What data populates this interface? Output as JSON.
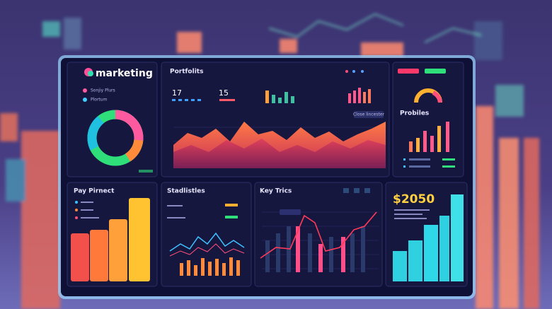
{
  "header": {
    "logo": "marketing"
  },
  "sidebar": {
    "legend": [
      "Sonjiy Plurs",
      "Plortum"
    ]
  },
  "overview": {
    "title": "Portfolits",
    "stats": [
      "17",
      "15"
    ],
    "button": "Close lincester"
  },
  "profiles": {
    "title": "Probiles"
  },
  "panels": [
    {
      "title": "Pay Pirnect"
    },
    {
      "title": "Stadlistles"
    },
    {
      "title": "Key Trics"
    },
    {
      "title": "$2050"
    }
  ]
}
